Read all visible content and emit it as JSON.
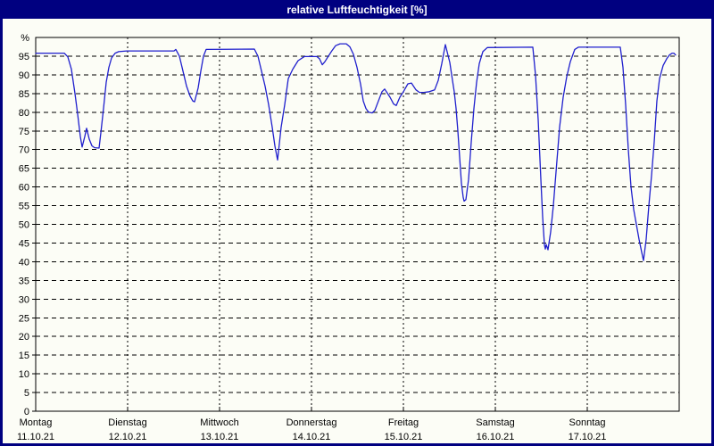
{
  "window": {
    "title": "relative Luftfeuchtigkeit [%]",
    "titlebar_color": "#000080",
    "border_color": "#000080",
    "content_background": "#fcfdf6"
  },
  "chart_data": {
    "type": "line",
    "title": "relative Luftfeuchtigkeit [%]",
    "ylabel": "%",
    "y_top_label": "%",
    "ylim": [
      0,
      100
    ],
    "y_ticks": [
      0,
      5,
      10,
      15,
      20,
      25,
      30,
      35,
      40,
      45,
      50,
      55,
      60,
      65,
      70,
      75,
      80,
      85,
      90,
      95
    ],
    "xlim_days": [
      0,
      7
    ],
    "grid": "dashed",
    "legend": "none",
    "line_color": "#1f1fcd",
    "grid_color": "#000000",
    "x_axis_days": [
      {
        "label": "Montag",
        "date": "11.10.21"
      },
      {
        "label": "Dienstag",
        "date": "12.10.21"
      },
      {
        "label": "Mittwoch",
        "date": "13.10.21"
      },
      {
        "label": "Donnerstag",
        "date": "14.10.21"
      },
      {
        "label": "Freitag",
        "date": "15.10.21"
      },
      {
        "label": "Samstag",
        "date": "16.10.21"
      },
      {
        "label": "Sonntag",
        "date": "17.10.21"
      }
    ],
    "series": [
      {
        "name": "relative Luftfeuchtigkeit",
        "unit": "%",
        "x_unit": "days since Monday 11.10.21 00:00",
        "points": [
          [
            0.0,
            95.8
          ],
          [
            0.311,
            95.8
          ],
          [
            0.35,
            94.8
          ],
          [
            0.388,
            91.5
          ],
          [
            0.427,
            85.0
          ],
          [
            0.456,
            79.5
          ],
          [
            0.485,
            73.5
          ],
          [
            0.505,
            70.7
          ],
          [
            0.534,
            73.5
          ],
          [
            0.553,
            75.7
          ],
          [
            0.583,
            72.8
          ],
          [
            0.612,
            71.0
          ],
          [
            0.641,
            70.5
          ],
          [
            0.689,
            70.4
          ],
          [
            0.709,
            74.5
          ],
          [
            0.738,
            81.0
          ],
          [
            0.767,
            88.0
          ],
          [
            0.796,
            92.0
          ],
          [
            0.825,
            94.5
          ],
          [
            0.864,
            95.8
          ],
          [
            0.903,
            96.2
          ],
          [
            0.99,
            96.4
          ],
          [
            1.505,
            96.4
          ],
          [
            1.524,
            96.8
          ],
          [
            1.563,
            95.0
          ],
          [
            1.602,
            91.0
          ],
          [
            1.641,
            87.0
          ],
          [
            1.68,
            84.3
          ],
          [
            1.709,
            83.0
          ],
          [
            1.728,
            82.8
          ],
          [
            1.767,
            86.5
          ],
          [
            1.796,
            91.0
          ],
          [
            1.825,
            95.0
          ],
          [
            1.854,
            96.8
          ],
          [
            2.379,
            96.9
          ],
          [
            2.417,
            95.0
          ],
          [
            2.456,
            91.0
          ],
          [
            2.495,
            87.0
          ],
          [
            2.534,
            82.0
          ],
          [
            2.573,
            76.0
          ],
          [
            2.602,
            71.0
          ],
          [
            2.631,
            67.2
          ],
          [
            2.67,
            76.0
          ],
          [
            2.709,
            82.0
          ],
          [
            2.748,
            89.0
          ],
          [
            2.796,
            91.5
          ],
          [
            2.854,
            93.8
          ],
          [
            2.922,
            94.9
          ],
          [
            3.058,
            94.9
          ],
          [
            3.087,
            94.3
          ],
          [
            3.117,
            92.7
          ],
          [
            3.146,
            93.5
          ],
          [
            3.184,
            95.0
          ],
          [
            3.223,
            96.5
          ],
          [
            3.262,
            97.8
          ],
          [
            3.311,
            98.3
          ],
          [
            3.379,
            98.3
          ],
          [
            3.417,
            97.5
          ],
          [
            3.456,
            95.5
          ],
          [
            3.495,
            92.0
          ],
          [
            3.534,
            87.5
          ],
          [
            3.563,
            83.0
          ],
          [
            3.592,
            81.0
          ],
          [
            3.621,
            80.0
          ],
          [
            3.66,
            79.8
          ],
          [
            3.689,
            80.5
          ],
          [
            3.728,
            83.0
          ],
          [
            3.767,
            85.5
          ],
          [
            3.796,
            86.2
          ],
          [
            3.854,
            84.0
          ],
          [
            3.893,
            82.2
          ],
          [
            3.922,
            81.8
          ],
          [
            3.961,
            84.0
          ],
          [
            4.0,
            85.5
          ],
          [
            4.049,
            87.6
          ],
          [
            4.087,
            87.8
          ],
          [
            4.136,
            86.0
          ],
          [
            4.175,
            85.3
          ],
          [
            4.223,
            85.3
          ],
          [
            4.282,
            85.5
          ],
          [
            4.34,
            86.0
          ],
          [
            4.379,
            88.5
          ],
          [
            4.417,
            93.0
          ],
          [
            4.456,
            98.1
          ],
          [
            4.505,
            93.3
          ],
          [
            4.534,
            88.5
          ],
          [
            4.553,
            85.4
          ],
          [
            4.573,
            81.0
          ],
          [
            4.592,
            75.0
          ],
          [
            4.612,
            68.0
          ],
          [
            4.631,
            61.0
          ],
          [
            4.65,
            57.2
          ],
          [
            4.66,
            56.2
          ],
          [
            4.68,
            56.6
          ],
          [
            4.709,
            62.0
          ],
          [
            4.738,
            72.0
          ],
          [
            4.767,
            81.0
          ],
          [
            4.796,
            88.0
          ],
          [
            4.825,
            93.0
          ],
          [
            4.864,
            96.2
          ],
          [
            4.913,
            97.3
          ],
          [
            5.408,
            97.4
          ],
          [
            5.437,
            90.0
          ],
          [
            5.466,
            78.0
          ],
          [
            5.495,
            62.0
          ],
          [
            5.515,
            52.0
          ],
          [
            5.534,
            44.5
          ],
          [
            5.544,
            43.4
          ],
          [
            5.553,
            44.6
          ],
          [
            5.573,
            43.2
          ],
          [
            5.602,
            48.0
          ],
          [
            5.631,
            55.0
          ],
          [
            5.66,
            64.0
          ],
          [
            5.699,
            76.0
          ],
          [
            5.738,
            84.0
          ],
          [
            5.777,
            89.5
          ],
          [
            5.816,
            93.5
          ],
          [
            5.864,
            96.8
          ],
          [
            5.903,
            97.4
          ],
          [
            6.359,
            97.4
          ],
          [
            6.388,
            92.0
          ],
          [
            6.417,
            82.0
          ],
          [
            6.447,
            70.0
          ],
          [
            6.476,
            60.0
          ],
          [
            6.505,
            54.0
          ],
          [
            6.534,
            50.0
          ],
          [
            6.563,
            46.0
          ],
          [
            6.592,
            42.5
          ],
          [
            6.612,
            40.3
          ],
          [
            6.641,
            46.0
          ],
          [
            6.67,
            55.0
          ],
          [
            6.699,
            63.0
          ],
          [
            6.728,
            72.0
          ],
          [
            6.757,
            83.0
          ],
          [
            6.786,
            89.0
          ],
          [
            6.825,
            92.5
          ],
          [
            6.864,
            94.3
          ],
          [
            6.893,
            95.3
          ],
          [
            6.922,
            95.8
          ],
          [
            6.942,
            95.8
          ],
          [
            6.961,
            95.3
          ]
        ]
      }
    ]
  }
}
